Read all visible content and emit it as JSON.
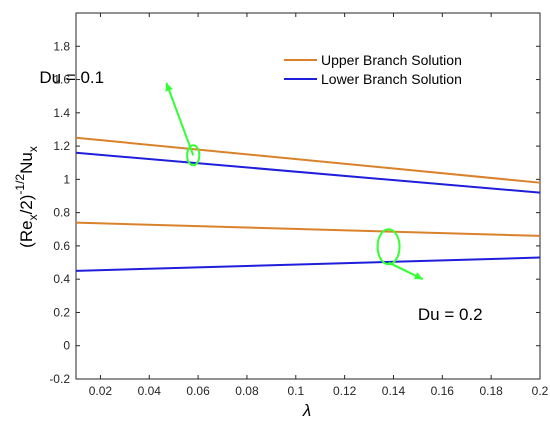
{
  "chart_data": {
    "type": "line",
    "x": [
      0.01,
      0.2
    ],
    "xlim": [
      0.01,
      0.2
    ],
    "ylim": [
      -0.2,
      2.0
    ],
    "xticks": [
      "0.02",
      "0.04",
      "0.06",
      "0.08",
      "0.1",
      "0.12",
      "0.14",
      "0.16",
      "0.18",
      "0.2"
    ],
    "yticks": [
      "-0.2",
      "0",
      "0.2",
      "0.4",
      "0.6",
      "0.8",
      "1",
      "1.2",
      "1.4",
      "1.6",
      "1.8"
    ],
    "xlabel": "λ",
    "ylabel": {
      "open": "(Re",
      "sub1": "x",
      "mid": "/2)",
      "sup": "-1/2",
      "nu": "Nu",
      "sub2": "x"
    },
    "legend": {
      "placement": "top-right",
      "entries": [
        {
          "label": "Upper Branch Solution",
          "color": "#D9822B"
        },
        {
          "label": "Lower Branch Solution",
          "color": "#1F1FDB"
        }
      ]
    },
    "series": [
      {
        "name": "Upper Branch Solution",
        "group": "Du = 0.1",
        "color": "#D9822B",
        "y": [
          1.25,
          0.98
        ]
      },
      {
        "name": "Lower Branch Solution",
        "group": "Du = 0.1",
        "color": "#1F1FDB",
        "y": [
          1.16,
          0.92
        ]
      },
      {
        "name": "Upper Branch Solution",
        "group": "Du = 0.2",
        "color": "#D9822B",
        "y": [
          0.74,
          0.66
        ]
      },
      {
        "name": "Lower Branch Solution",
        "group": "Du = 0.2",
        "color": "#1F1FDB",
        "y": [
          0.45,
          0.53
        ]
      }
    ],
    "annotations": [
      {
        "text": "Du = 0.1",
        "ellipse_at": [
          0.058,
          1.145
        ],
        "ellipse_span": [
          0.0025,
          0.06
        ],
        "label_anchor": [
          -0.005,
          1.615
        ],
        "arrow_from": [
          0.058,
          1.145
        ],
        "arrow_to": [
          0.047,
          1.58
        ]
      },
      {
        "text": "Du = 0.2",
        "ellipse_at": [
          0.138,
          0.595
        ],
        "ellipse_span": [
          0.0045,
          0.105
        ],
        "label_anchor": [
          0.15,
          0.19
        ],
        "arrow_from": [
          0.138,
          0.5
        ],
        "arrow_to": [
          0.152,
          0.4
        ]
      }
    ],
    "annotation_color": "#33FF33",
    "grid": false
  }
}
